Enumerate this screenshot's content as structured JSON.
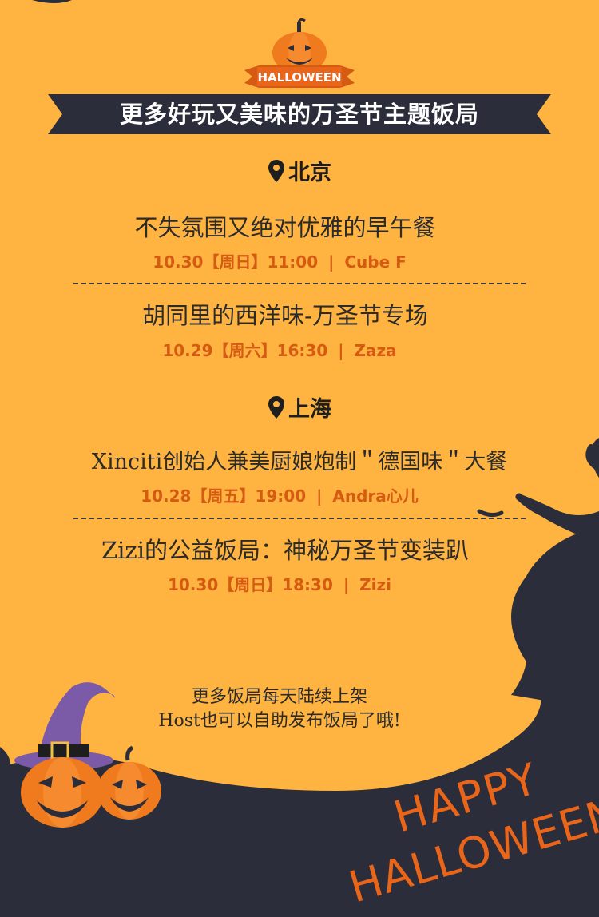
{
  "logo": {
    "text": "HALLOWEEN"
  },
  "banner": {
    "title": "更多好玩又美味的万圣节主题饭局"
  },
  "cities": [
    {
      "name": "北京",
      "events": [
        {
          "title": "不失氛围又绝对优雅的早午餐",
          "date": "10.30【周日】11:00",
          "venue": "Cube F"
        },
        {
          "title": "胡同里的西洋味-万圣节专场",
          "date": "10.29【周六】16:30",
          "venue": "Zaza"
        }
      ]
    },
    {
      "name": "上海",
      "events": [
        {
          "title": "Xinciti创始人兼美厨娘炮制＂德国味＂大餐",
          "date": "10.28【周五】19:00",
          "venue": "Andra心儿"
        },
        {
          "title": "Zizi的公益饭局：神秘万圣节变装趴",
          "date": "10.30【周日】18:30",
          "venue": "Zizi"
        }
      ]
    }
  ],
  "separator": "|",
  "footer_note": {
    "line1": "更多饭局每天陆续上架",
    "line2": "Host也可以自助发布饭局了哦!"
  },
  "happy_halloween": {
    "line1": "HAPPY",
    "line2": "HALLOWEEN"
  },
  "colors": {
    "background": "#ffb340",
    "dark": "#2b2d3a",
    "accent": "#d55a12",
    "pumpkin": "#f07a1e",
    "hat": "#7b5aa8"
  }
}
